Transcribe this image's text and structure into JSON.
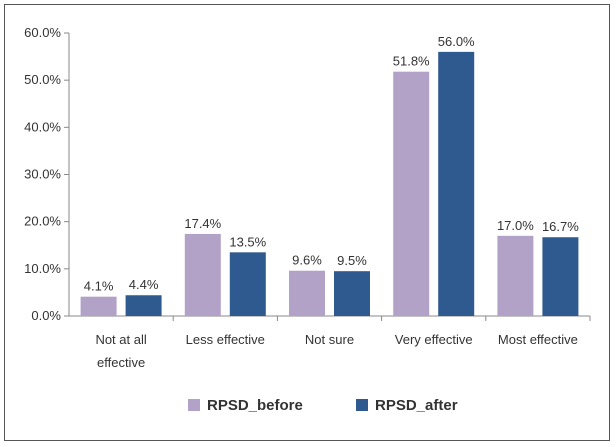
{
  "chart_data": {
    "type": "bar",
    "categories": [
      [
        "Not at all",
        "effective"
      ],
      [
        "Less effective"
      ],
      [
        "Not sure"
      ],
      [
        "Very effective"
      ],
      [
        "Most effective"
      ]
    ],
    "series": [
      {
        "name": "RPSD_before",
        "color": "#b3a2c7",
        "values": [
          4.1,
          17.4,
          9.6,
          51.8,
          17.0
        ],
        "labels": [
          "4.1%",
          "17.4%",
          "9.6%",
          "51.8%",
          "17.0%"
        ]
      },
      {
        "name": "RPSD_after",
        "color": "#2f5a8f",
        "values": [
          4.4,
          13.5,
          9.5,
          56.0,
          16.7
        ],
        "labels": [
          "4.4%",
          "13.5%",
          "9.5%",
          "56.0%",
          "16.7%"
        ]
      }
    ],
    "yticks": [
      "0.0%",
      "10.0%",
      "20.0%",
      "30.0%",
      "40.0%",
      "50.0%",
      "60.0%"
    ],
    "ylim": [
      0,
      60
    ],
    "grid": false,
    "legend_position": "bottom"
  }
}
